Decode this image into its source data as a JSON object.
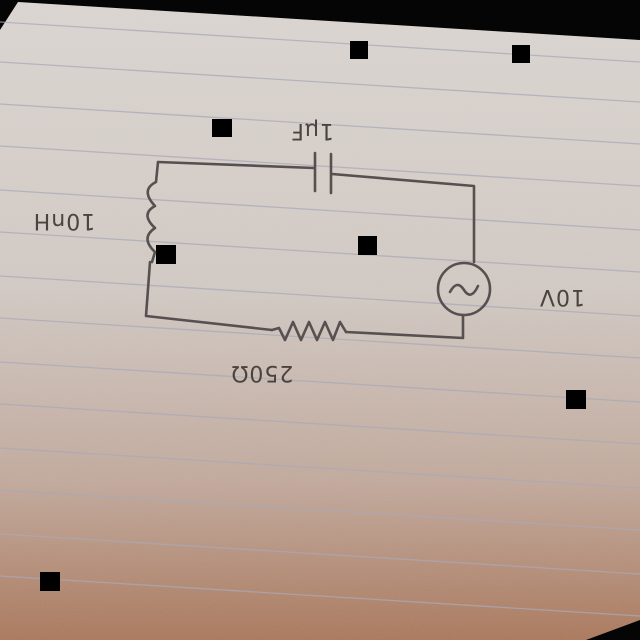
{
  "diagram": {
    "kind": "RLC series circuit (handwritten, rotated 180°)",
    "labels": {
      "capacitor": "1μF",
      "inductor": "10nH",
      "resistor": "250Ω",
      "source": "10V"
    },
    "components": [
      {
        "id": "capacitor",
        "symbol": "capacitor",
        "value_label": "capacitor"
      },
      {
        "id": "inductor",
        "symbol": "coil",
        "value_label": "inductor"
      },
      {
        "id": "resistor",
        "symbol": "zigzag",
        "value_label": "resistor"
      },
      {
        "id": "source",
        "symbol": "ac-source",
        "value_label": "source"
      }
    ]
  }
}
